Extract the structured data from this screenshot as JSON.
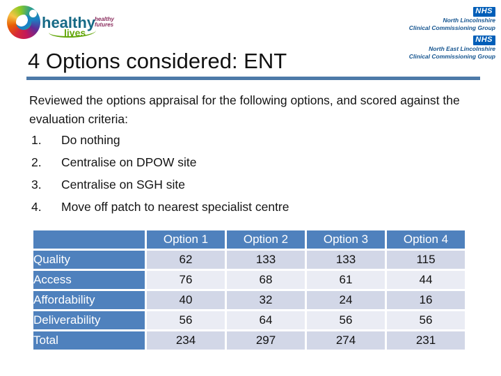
{
  "logo": {
    "healthy": "healthy",
    "lives": "lives",
    "futures_line1": "healthy",
    "futures_line2": "futures"
  },
  "nhs": {
    "org1": {
      "badge": "NHS",
      "line1": "North Lincolnshire",
      "line2": "Clinical Commissioning Group"
    },
    "org2": {
      "badge": "NHS",
      "line1": "North East Lincolnshire",
      "line2": "Clinical Commissioning Group"
    }
  },
  "title": "4 Options considered: ENT",
  "intro": "Reviewed the options appraisal for the following options, and scored against the evaluation criteria:",
  "list": {
    "items": [
      {
        "num": "1.",
        "text": "Do nothing"
      },
      {
        "num": "2.",
        "text": "Centralise on DPOW site"
      },
      {
        "num": "3.",
        "text": "Centralise on SGH site"
      },
      {
        "num": "4.",
        "text": "Move off patch to nearest specialist centre"
      }
    ]
  },
  "table": {
    "header": [
      "",
      "Option 1",
      "Option 2",
      "Option 3",
      "Option 4"
    ],
    "rows": [
      {
        "label": "Quality",
        "values": [
          62,
          133,
          133,
          115
        ]
      },
      {
        "label": "Access",
        "values": [
          76,
          68,
          61,
          44
        ]
      },
      {
        "label": "Affordability",
        "values": [
          40,
          32,
          24,
          16
        ]
      },
      {
        "label": "Deliverability",
        "values": [
          56,
          64,
          56,
          56
        ]
      },
      {
        "label": "Total",
        "values": [
          234,
          297,
          274,
          231
        ]
      }
    ]
  },
  "colors": {
    "accent_blue": "#4f81bd",
    "band_dark": "#d2d7e7",
    "band_light": "#eaecf4",
    "rule_blue": "#4d7aa8",
    "nhs_blue": "#005eb8",
    "nhs_text": "#14548f",
    "logo_teal": "#176a86",
    "logo_green": "#63a70a",
    "logo_maroon": "#8b2e5e"
  }
}
